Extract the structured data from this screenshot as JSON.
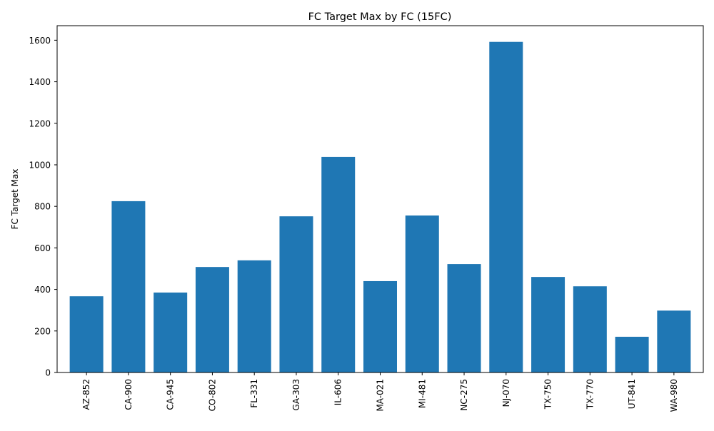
{
  "chart_data": {
    "type": "bar",
    "title": "FC Target Max by FC (15FC)",
    "xlabel": "",
    "ylabel": "FC Target Max",
    "categories": [
      "AZ-852",
      "CA-900",
      "CA-945",
      "CO-802",
      "FL-331",
      "GA-303",
      "IL-606",
      "MA-021",
      "MI-481",
      "NC-275",
      "NJ-070",
      "TX-750",
      "TX-770",
      "UT-841",
      "WA-980"
    ],
    "values": [
      367,
      825,
      385,
      508,
      540,
      752,
      1038,
      440,
      756,
      522,
      1592,
      460,
      415,
      172,
      298
    ],
    "ylim": [
      0,
      1670
    ],
    "yticks": [
      0,
      200,
      400,
      600,
      800,
      1000,
      1200,
      1400,
      1600
    ],
    "grid": false,
    "bar_color": "#1f77b4"
  }
}
